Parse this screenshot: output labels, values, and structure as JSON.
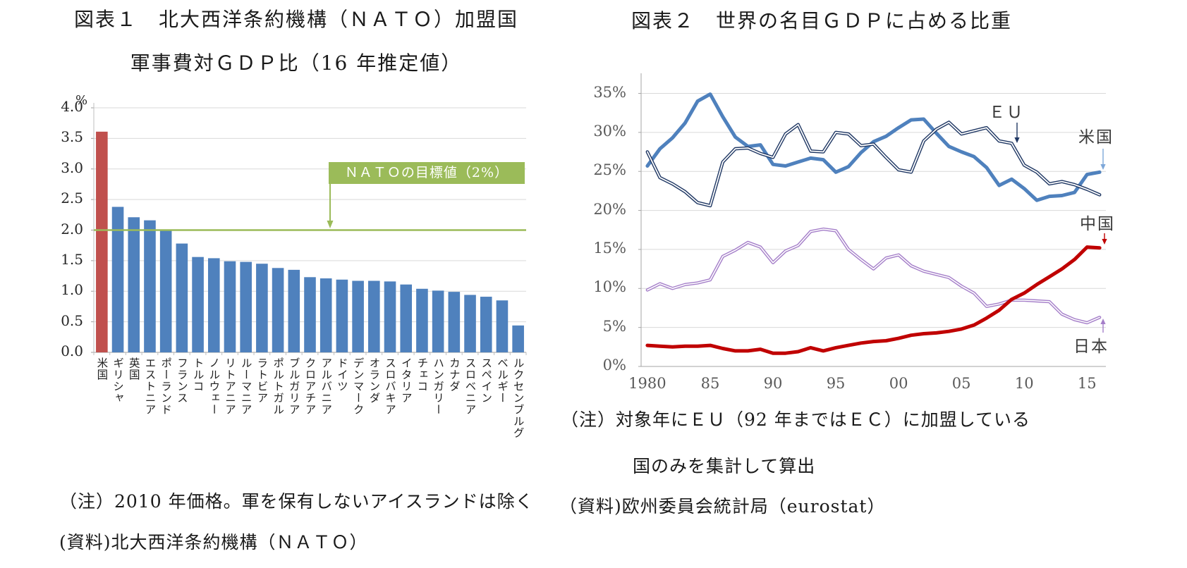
{
  "fig1": {
    "title_line1": "図表１　北大西洋条約機構（ＮＡＴＯ）加盟国",
    "title_line2": "軍事費対ＧＤＰ比（16 年推定値）",
    "unit_label": "%",
    "target_box_label": "ＮＡＴＯの目標値（2%）",
    "note_line1": "（注）2010 年価格。軍を保有しないアイスランドは除く",
    "source_line": "(資料)北大西洋条約機構（ＮＡＴＯ）"
  },
  "fig2": {
    "title": "図表２　世界の名目ＧＤＰに占める比重",
    "note_line1": "（注）対象年にＥＵ（92 年まではＥＣ）に加盟している",
    "note_line2": "国のみを集計して算出",
    "source_line": "（資料)欧州委員会統計局（eurostat）",
    "series_labels": {
      "eu": "ＥＵ",
      "us": "米国",
      "china": "中国",
      "japan": "日本"
    }
  },
  "chart_data": [
    {
      "type": "bar",
      "title": "図表１ 北大西洋条約機構（ＮＡＴＯ）加盟国 軍事費対ＧＤＰ比（16年推定値）",
      "ylabel": "%",
      "ylim": [
        0,
        4.0
      ],
      "yticks": [
        0,
        0.5,
        1.0,
        1.5,
        2.0,
        2.5,
        3.0,
        3.5,
        4.0
      ],
      "ytick_labels": [
        "0.0",
        "0.5",
        "1.0",
        "1.5",
        "2.0",
        "2.5",
        "3.0",
        "3.5",
        "4.0"
      ],
      "categories": [
        "米国",
        "ギリシャ",
        "英国",
        "エストニア",
        "ポーランド",
        "フランス",
        "トルコ",
        "ノルウェー",
        "リトアニア",
        "ルーマニア",
        "ラトビア",
        "ポルトガル",
        "ブルガリア",
        "クロアチア",
        "アルバニア",
        "ドイツ",
        "デンマーク",
        "オランダ",
        "スロバキア",
        "イタリア",
        "チェコ",
        "ハンガリー",
        "カナダ",
        "スロベニア",
        "スペイン",
        "ベルギー",
        "ルクセンブルグ"
      ],
      "values": [
        3.61,
        2.38,
        2.21,
        2.16,
        2.0,
        1.78,
        1.56,
        1.54,
        1.49,
        1.48,
        1.45,
        1.38,
        1.35,
        1.23,
        1.21,
        1.19,
        1.17,
        1.17,
        1.16,
        1.11,
        1.04,
        1.01,
        0.99,
        0.94,
        0.91,
        0.85,
        0.44
      ],
      "bar_color": "#4f81bd",
      "highlight_color": "#c0504d",
      "highlight_index": 0,
      "target_value": 2.0,
      "target_color": "#9bbb59",
      "target_label": "ＮＡＴＯの目標値（2%）",
      "grid": true,
      "legend": "none"
    },
    {
      "type": "line",
      "title": "図表２ 世界の名目ＧＤＰに占める比重",
      "ylim": [
        0,
        35
      ],
      "ytick_step": 5,
      "ylabel_suffix": "%",
      "grid": true,
      "legend": "inline-annotations",
      "x": [
        1980,
        1981,
        1982,
        1983,
        1984,
        1985,
        1986,
        1987,
        1988,
        1989,
        1990,
        1991,
        1992,
        1993,
        1994,
        1995,
        1996,
        1997,
        1998,
        1999,
        2000,
        2001,
        2002,
        2003,
        2004,
        2005,
        2006,
        2007,
        2008,
        2009,
        2010,
        2011,
        2012,
        2013,
        2014,
        2015,
        2016
      ],
      "xtick_indices": [
        0,
        5,
        10,
        15,
        20,
        25,
        30,
        35
      ],
      "xtick_labels": [
        "1980",
        "85",
        "90",
        "95",
        "00",
        "05",
        "10",
        "15"
      ],
      "series": [
        {
          "name": "米国",
          "color": "#4f81bd",
          "width": 5,
          "double": false,
          "values": [
            25.7,
            27.9,
            29.3,
            31.2,
            34.0,
            34.9,
            32.0,
            29.4,
            28.2,
            28.4,
            25.9,
            25.7,
            26.2,
            26.7,
            26.5,
            24.9,
            25.6,
            27.4,
            28.8,
            29.5,
            30.6,
            31.6,
            31.7,
            29.9,
            28.2,
            27.5,
            26.9,
            25.5,
            23.2,
            24.0,
            22.8,
            21.3,
            21.8,
            21.9,
            22.3,
            24.6,
            24.9
          ]
        },
        {
          "name": "日本",
          "color": "#a57fc9",
          "width": 4.4,
          "double": true,
          "values": [
            9.8,
            10.6,
            10.0,
            10.5,
            10.7,
            11.1,
            14.1,
            14.9,
            15.9,
            15.3,
            13.3,
            14.8,
            15.5,
            17.3,
            17.6,
            17.4,
            15.0,
            13.7,
            12.5,
            13.9,
            14.3,
            12.9,
            12.2,
            11.8,
            11.4,
            10.3,
            9.4,
            7.7,
            8.0,
            8.5,
            8.5,
            8.4,
            8.3,
            6.7,
            6.0,
            5.6,
            6.3
          ]
        },
        {
          "name": "中国",
          "color": "#c00000",
          "width": 5,
          "double": false,
          "values": [
            2.7,
            2.6,
            2.5,
            2.6,
            2.6,
            2.7,
            2.3,
            2.0,
            2.0,
            2.2,
            1.7,
            1.7,
            1.9,
            2.4,
            2.0,
            2.4,
            2.7,
            3.0,
            3.2,
            3.3,
            3.6,
            4.0,
            4.2,
            4.3,
            4.5,
            4.8,
            5.3,
            6.2,
            7.2,
            8.6,
            9.4,
            10.5,
            11.5,
            12.5,
            13.7,
            15.3,
            15.2
          ]
        },
        {
          "name": "ＥＵ",
          "color": "#203864",
          "width": 4.6,
          "double": true,
          "values": [
            27.5,
            24.2,
            23.4,
            22.4,
            21.0,
            20.6,
            26.2,
            27.9,
            28.0,
            27.3,
            26.8,
            29.8,
            31.0,
            27.6,
            27.5,
            30.0,
            29.8,
            28.3,
            28.5,
            26.8,
            25.2,
            24.9,
            28.9,
            30.4,
            31.3,
            29.8,
            30.2,
            30.6,
            28.9,
            28.6,
            25.8,
            24.9,
            23.4,
            23.7,
            23.3,
            22.7,
            22.0
          ]
        }
      ]
    }
  ]
}
